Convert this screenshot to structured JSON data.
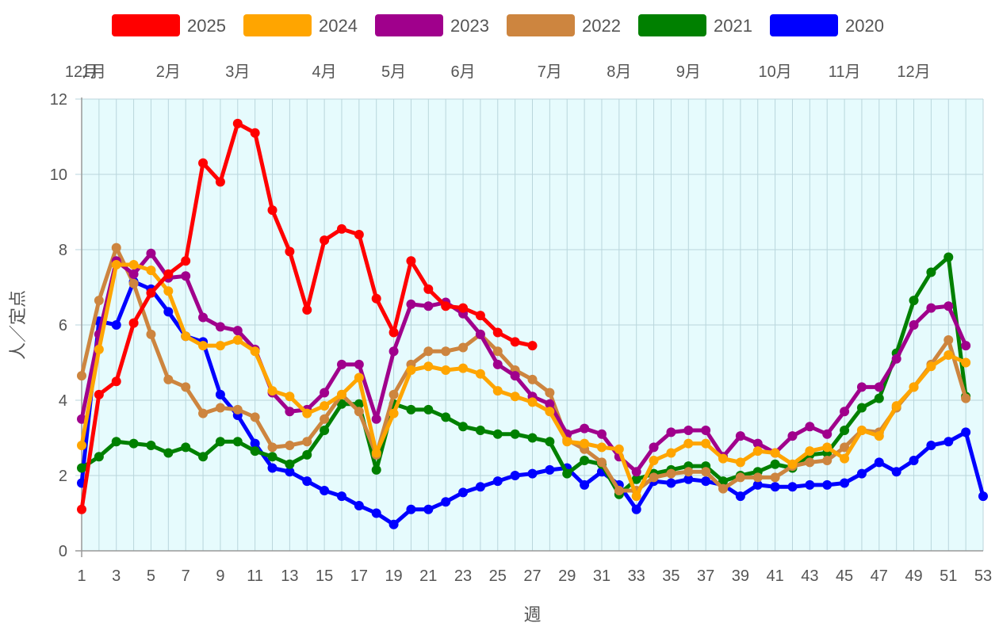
{
  "chart_data": {
    "type": "line",
    "xlabel": "週",
    "ylabel": "人／定点",
    "ylim": [
      0,
      12
    ],
    "y_ticks": [
      0,
      2,
      4,
      6,
      8,
      10,
      12
    ],
    "xlim": [
      1,
      53
    ],
    "x_tick_labels": [
      1,
      3,
      5,
      7,
      9,
      11,
      13,
      15,
      17,
      19,
      21,
      23,
      25,
      27,
      29,
      31,
      33,
      35,
      37,
      39,
      41,
      43,
      45,
      47,
      49,
      51,
      53
    ],
    "month_labels": [
      {
        "label": "12月",
        "week": 1
      },
      {
        "label": "1月",
        "week": 1.7
      },
      {
        "label": "2月",
        "week": 6
      },
      {
        "label": "3月",
        "week": 10
      },
      {
        "label": "4月",
        "week": 15
      },
      {
        "label": "5月",
        "week": 19
      },
      {
        "label": "6月",
        "week": 23
      },
      {
        "label": "7月",
        "week": 28
      },
      {
        "label": "8月",
        "week": 32
      },
      {
        "label": "9月",
        "week": 36
      },
      {
        "label": "10月",
        "week": 41
      },
      {
        "label": "11月",
        "week": 45
      },
      {
        "label": "12月",
        "week": 49
      }
    ],
    "grid": true,
    "plot_background": "#e6fbfd",
    "legend_position": "top",
    "series": [
      {
        "name": "2025",
        "color": "#ff0000",
        "values": [
          1.1,
          4.15,
          4.5,
          6.05,
          6.85,
          7.35,
          7.7,
          10.3,
          9.8,
          11.35,
          11.1,
          9.05,
          7.95,
          6.4,
          8.25,
          8.55,
          8.4,
          6.7,
          5.8,
          7.7,
          6.95,
          6.5,
          6.45,
          6.25,
          5.8,
          5.55,
          5.45
        ]
      },
      {
        "name": "2024",
        "color": "#ffa500",
        "values": [
          2.8,
          5.35,
          7.6,
          7.6,
          7.45,
          6.9,
          5.7,
          5.45,
          5.45,
          5.6,
          5.3,
          4.25,
          4.1,
          3.65,
          3.85,
          4.15,
          4.6,
          2.6,
          3.65,
          4.8,
          4.9,
          4.8,
          4.85,
          4.7,
          4.25,
          4.1,
          3.95,
          3.7,
          2.9,
          2.85,
          2.75,
          2.7,
          1.45,
          2.4,
          2.6,
          2.85,
          2.85,
          2.45,
          2.35,
          2.65,
          2.6,
          2.3,
          2.65,
          2.75,
          2.45,
          3.2,
          3.05,
          3.85,
          4.35,
          4.9,
          5.2,
          5.0
        ]
      },
      {
        "name": "2023",
        "color": "#a0008c",
        "values": [
          3.5,
          5.75,
          7.7,
          7.35,
          7.9,
          7.25,
          7.3,
          6.2,
          5.95,
          5.85,
          5.35,
          4.2,
          3.7,
          3.75,
          4.2,
          4.95,
          4.95,
          3.5,
          5.3,
          6.55,
          6.5,
          6.6,
          6.3,
          5.75,
          4.95,
          4.65,
          4.1,
          3.9,
          3.1,
          3.25,
          3.1,
          2.5,
          2.1,
          2.75,
          3.15,
          3.2,
          3.2,
          2.5,
          3.05,
          2.85,
          2.6,
          3.05,
          3.3,
          3.1,
          3.7,
          4.35,
          4.35,
          5.1,
          6.0,
          6.45,
          6.5,
          5.45
        ]
      },
      {
        "name": "2022",
        "color": "#cd853f",
        "values": [
          4.65,
          6.65,
          8.05,
          7.1,
          5.75,
          4.55,
          4.35,
          3.65,
          3.8,
          3.75,
          3.55,
          2.75,
          2.8,
          2.9,
          3.5,
          4.15,
          3.7,
          2.55,
          4.15,
          4.95,
          5.3,
          5.3,
          5.4,
          5.75,
          5.3,
          4.8,
          4.55,
          4.2,
          2.95,
          2.7,
          2.35,
          1.6,
          1.6,
          1.95,
          2.05,
          2.1,
          2.1,
          1.65,
          1.95,
          1.95,
          1.95,
          2.25,
          2.35,
          2.4,
          2.75,
          3.2,
          3.15,
          3.8,
          4.35,
          4.95,
          5.6,
          4.05
        ]
      },
      {
        "name": "2021",
        "color": "#008000",
        "values": [
          2.2,
          2.5,
          2.9,
          2.85,
          2.8,
          2.6,
          2.75,
          2.5,
          2.9,
          2.9,
          2.65,
          2.5,
          2.3,
          2.55,
          3.2,
          3.9,
          3.9,
          2.15,
          3.9,
          3.75,
          3.75,
          3.55,
          3.3,
          3.2,
          3.1,
          3.1,
          3.0,
          2.9,
          2.05,
          2.4,
          2.3,
          1.5,
          1.9,
          2.05,
          2.15,
          2.25,
          2.25,
          1.85,
          2.0,
          2.1,
          2.3,
          2.2,
          2.55,
          2.6,
          3.2,
          3.8,
          4.05,
          5.25,
          6.65,
          7.4,
          7.8,
          4.1
        ]
      },
      {
        "name": "2020",
        "color": "#0000ff",
        "values": [
          1.8,
          6.1,
          6.0,
          7.15,
          6.95,
          6.35,
          5.7,
          5.55,
          4.15,
          3.6,
          2.85,
          2.2,
          2.1,
          1.85,
          1.6,
          1.45,
          1.2,
          1.0,
          0.7,
          1.1,
          1.1,
          1.3,
          1.55,
          1.7,
          1.85,
          2.0,
          2.05,
          2.15,
          2.2,
          1.75,
          2.1,
          1.75,
          1.1,
          1.85,
          1.8,
          1.9,
          1.85,
          1.75,
          1.45,
          1.75,
          1.7,
          1.7,
          1.75,
          1.75,
          1.8,
          2.05,
          2.35,
          2.1,
          2.4,
          2.8,
          2.9,
          3.15,
          1.45
        ]
      }
    ]
  }
}
